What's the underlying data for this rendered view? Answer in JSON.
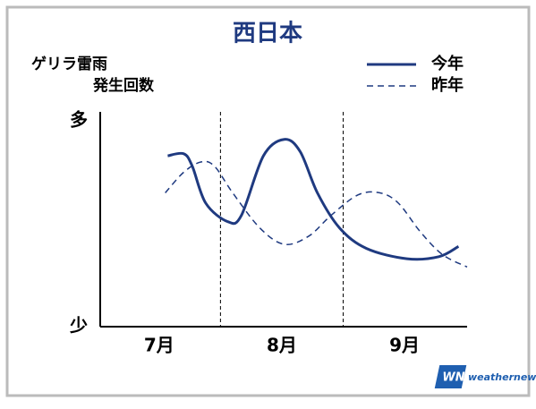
{
  "chart_data": {
    "type": "line",
    "title": "西日本",
    "y_label": [
      "ゲリラ雷雨",
      "発生回数"
    ],
    "xlim": [
      6.52,
      9.51
    ],
    "xticks": [
      {
        "value": 7,
        "label": "7月"
      },
      {
        "value": 8,
        "label": "8月"
      },
      {
        "value": 9,
        "label": "9月"
      }
    ],
    "ylim": [
      0,
      100
    ],
    "yticks": [
      {
        "value": 0,
        "label": "少"
      },
      {
        "value": 100,
        "label": "多"
      }
    ],
    "legend": "top-right",
    "series": [
      {
        "name": "今年",
        "color": "#1f3a80",
        "style": "solid",
        "x": [
          7.07,
          7.2,
          7.27,
          7.38,
          7.56,
          7.67,
          7.85,
          8.02,
          8.15,
          8.29,
          8.47,
          8.69,
          9.02,
          9.28,
          9.44
        ],
        "values": [
          83,
          84,
          78,
          60,
          51,
          54,
          83,
          91,
          85,
          65,
          48,
          38,
          33,
          34,
          39
        ]
      },
      {
        "name": "昨年",
        "color": "#1f3a80",
        "style": "dashed",
        "x": [
          7.05,
          7.2,
          7.34,
          7.45,
          7.6,
          7.82,
          8.02,
          8.22,
          8.4,
          8.62,
          8.8,
          8.95,
          9.13,
          9.31,
          9.51
        ],
        "values": [
          65,
          75,
          80,
          78,
          65,
          48,
          40,
          44,
          54,
          64,
          65,
          60,
          46,
          35,
          29
        ]
      }
    ]
  },
  "logo": {
    "mark": "WN",
    "text": "weathernews"
  }
}
